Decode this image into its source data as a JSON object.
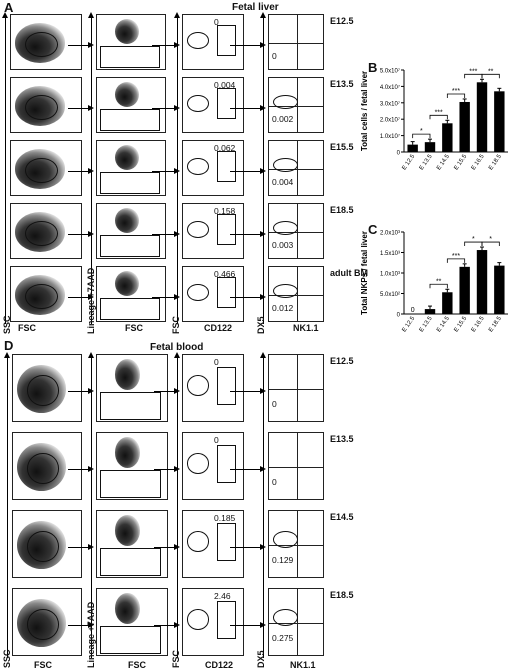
{
  "panel_a": {
    "letter": "A",
    "title": "Fetal liver",
    "stages": [
      "E12.5",
      "E13.5",
      "E15.5",
      "E18.5",
      "adult BM"
    ],
    "cd122_pct": [
      "0",
      "0.004",
      "0.062",
      "0.158",
      "0.466"
    ],
    "nk_pct": [
      "0",
      "0.002",
      "0.004",
      "0.003",
      "0.012"
    ],
    "axes": {
      "ssc": "SSC",
      "fsc": "FSC",
      "lineage": "Lineage +7AAD",
      "cd122": "CD122",
      "dx5": "DX5",
      "nk11": "NK1.1"
    }
  },
  "panel_b": {
    "letter": "B"
  },
  "panel_c": {
    "letter": "C"
  },
  "panel_d": {
    "letter": "D",
    "title": "Fetal blood",
    "stages": [
      "E12.5",
      "E13.5",
      "E14.5",
      "E18.5"
    ],
    "cd122_pct": [
      "0",
      "0",
      "0.185",
      "2.46"
    ],
    "nk_pct": [
      "0",
      "0",
      "0.129",
      "0.275"
    ],
    "axes": {
      "ssc": "SSC",
      "fsc": "FSC",
      "lineage": "Lineage +7AAD",
      "cd122": "CD122",
      "dx5": "DX5",
      "nk11": "NK1.1"
    }
  },
  "chart_data": [
    {
      "type": "bar",
      "title": "",
      "ylabel": "Total cells / fetal liver",
      "categories": [
        "E 12.5",
        "E 13.5",
        "E 14.5",
        "E 15.5",
        "E 16.5",
        "E 18.5"
      ],
      "values": [
        4500000.0,
        6000000.0,
        17500000.0,
        30500000.0,
        42500000.0,
        37000000.0
      ],
      "ylim": [
        0,
        50000000.0
      ],
      "yticks": [
        "0",
        "1.0x10⁷",
        "2.0x10⁷",
        "3.0x10⁷",
        "4.0x10⁷",
        "5.0x10⁷"
      ],
      "significance": [
        "*",
        "***",
        "***",
        "***",
        "**"
      ]
    },
    {
      "type": "bar",
      "title": "",
      "ylabel": "Total NKPs / fetal liver",
      "categories": [
        "E 12.5",
        "E 13.5",
        "E 14.5",
        "E 15.5",
        "E 16.5",
        "E 18.5"
      ],
      "values": [
        0,
        120,
        530,
        1150,
        1560,
        1180
      ],
      "ylim": [
        0,
        2000
      ],
      "yticks": [
        "0",
        "5.0x10²",
        "1.0x10³",
        "1.5x10³",
        "2.0x10³"
      ],
      "significance": [
        "**",
        "***",
        "*",
        "*"
      ],
      "zero_label": "0"
    }
  ]
}
